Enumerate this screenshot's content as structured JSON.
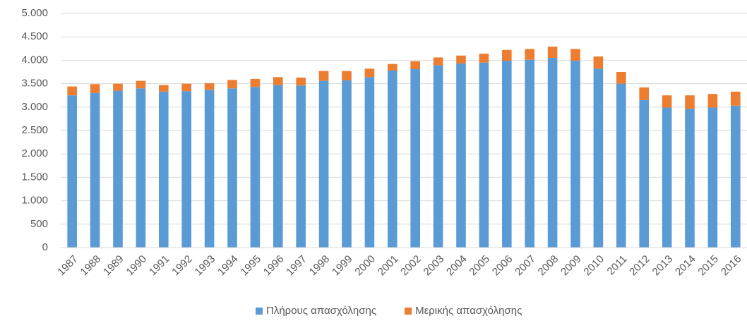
{
  "chart_data": {
    "type": "stacked_bar",
    "categories": [
      "1987",
      "1988",
      "1989",
      "1990",
      "1991",
      "1992",
      "1993",
      "1994",
      "1995",
      "1996",
      "1997",
      "1998",
      "1999",
      "2000",
      "2001",
      "2002",
      "2003",
      "2004",
      "2005",
      "2006",
      "2007",
      "2008",
      "2009",
      "2010",
      "2011",
      "2012",
      "2013",
      "2014",
      "2015",
      "2016"
    ],
    "series": [
      {
        "name": "Πλήρους απασχόλησης",
        "color": "#5b9bd5",
        "values": [
          3250,
          3300,
          3350,
          3400,
          3330,
          3340,
          3370,
          3400,
          3430,
          3470,
          3460,
          3560,
          3570,
          3640,
          3780,
          3810,
          3890,
          3930,
          3950,
          3990,
          4010,
          4050,
          3990,
          3820,
          3500,
          3150,
          2990,
          2960,
          2990,
          3030
        ]
      },
      {
        "name": "Μερικής απασχόλησης",
        "color": "#ed7d31",
        "values": [
          190,
          190,
          150,
          160,
          140,
          160,
          140,
          180,
          170,
          170,
          170,
          210,
          200,
          180,
          140,
          170,
          170,
          170,
          190,
          230,
          230,
          240,
          250,
          260,
          250,
          270,
          260,
          290,
          290,
          300
        ]
      }
    ],
    "ylim": [
      0,
      5000
    ],
    "yticks": [
      0,
      500,
      {
        "value": 1000,
        "label": "1.000"
      },
      {
        "value": 1500,
        "label": "1.500"
      },
      {
        "value": 2000,
        "label": "2.000"
      },
      {
        "value": 2500,
        "label": "2.500"
      },
      {
        "value": 3000,
        "label": "3.000"
      },
      {
        "value": 3500,
        "label": "3.500"
      },
      {
        "value": 4000,
        "label": "4.000"
      },
      {
        "value": 4500,
        "label": "4.500"
      },
      {
        "value": 5000,
        "label": "5.000"
      }
    ],
    "grid": true,
    "legend": "bottom"
  }
}
